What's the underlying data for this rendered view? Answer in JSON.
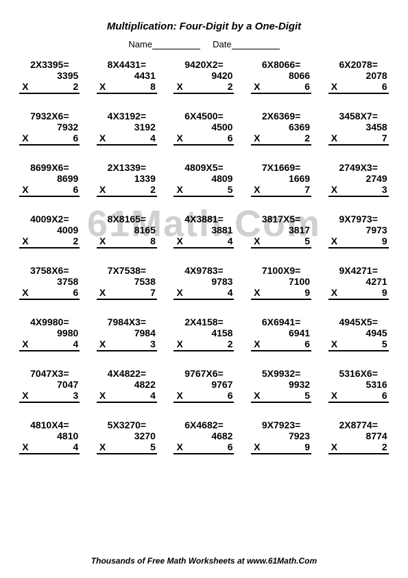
{
  "title": "Multiplication: Four-Digit by a One-Digit",
  "name_label": "Name",
  "date_label": "Date",
  "watermark": "61Math.Com",
  "footer": "Thousands of Free Math Worksheets at www.61Math.Com",
  "problems": [
    {
      "h": "2X3395=",
      "t": "3395",
      "m": "2"
    },
    {
      "h": "8X4431=",
      "t": "4431",
      "m": "8"
    },
    {
      "h": "9420X2=",
      "t": "9420",
      "m": "2"
    },
    {
      "h": "6X8066=",
      "t": "8066",
      "m": "6"
    },
    {
      "h": "6X2078=",
      "t": "2078",
      "m": "6"
    },
    {
      "h": "7932X6=",
      "t": "7932",
      "m": "6"
    },
    {
      "h": "4X3192=",
      "t": "3192",
      "m": "4"
    },
    {
      "h": "6X4500=",
      "t": "4500",
      "m": "6"
    },
    {
      "h": "2X6369=",
      "t": "6369",
      "m": "2"
    },
    {
      "h": "3458X7=",
      "t": "3458",
      "m": "7"
    },
    {
      "h": "8699X6=",
      "t": "8699",
      "m": "6"
    },
    {
      "h": "2X1339=",
      "t": "1339",
      "m": "2"
    },
    {
      "h": "4809X5=",
      "t": "4809",
      "m": "5"
    },
    {
      "h": "7X1669=",
      "t": "1669",
      "m": "7"
    },
    {
      "h": "2749X3=",
      "t": "2749",
      "m": "3"
    },
    {
      "h": "4009X2=",
      "t": "4009",
      "m": "2"
    },
    {
      "h": "8X8165=",
      "t": "8165",
      "m": "8"
    },
    {
      "h": "4X3881=",
      "t": "3881",
      "m": "4"
    },
    {
      "h": "3817X5=",
      "t": "3817",
      "m": "5"
    },
    {
      "h": "9X7973=",
      "t": "7973",
      "m": "9"
    },
    {
      "h": "3758X6=",
      "t": "3758",
      "m": "6"
    },
    {
      "h": "7X7538=",
      "t": "7538",
      "m": "7"
    },
    {
      "h": "4X9783=",
      "t": "9783",
      "m": "4"
    },
    {
      "h": "7100X9=",
      "t": "7100",
      "m": "9"
    },
    {
      "h": "9X4271=",
      "t": "4271",
      "m": "9"
    },
    {
      "h": "4X9980=",
      "t": "9980",
      "m": "4"
    },
    {
      "h": "7984X3=",
      "t": "7984",
      "m": "3"
    },
    {
      "h": "2X4158=",
      "t": "4158",
      "m": "2"
    },
    {
      "h": "6X6941=",
      "t": "6941",
      "m": "6"
    },
    {
      "h": "4945X5=",
      "t": "4945",
      "m": "5"
    },
    {
      "h": "7047X3=",
      "t": "7047",
      "m": "3"
    },
    {
      "h": "4X4822=",
      "t": "4822",
      "m": "4"
    },
    {
      "h": "9767X6=",
      "t": "9767",
      "m": "6"
    },
    {
      "h": "5X9932=",
      "t": "9932",
      "m": "5"
    },
    {
      "h": "5316X6=",
      "t": "5316",
      "m": "6"
    },
    {
      "h": "4810X4=",
      "t": "4810",
      "m": "4"
    },
    {
      "h": "5X3270=",
      "t": "3270",
      "m": "5"
    },
    {
      "h": "6X4682=",
      "t": "4682",
      "m": "6"
    },
    {
      "h": "9X7923=",
      "t": "7923",
      "m": "9"
    },
    {
      "h": "2X8774=",
      "t": "8774",
      "m": "2"
    }
  ]
}
